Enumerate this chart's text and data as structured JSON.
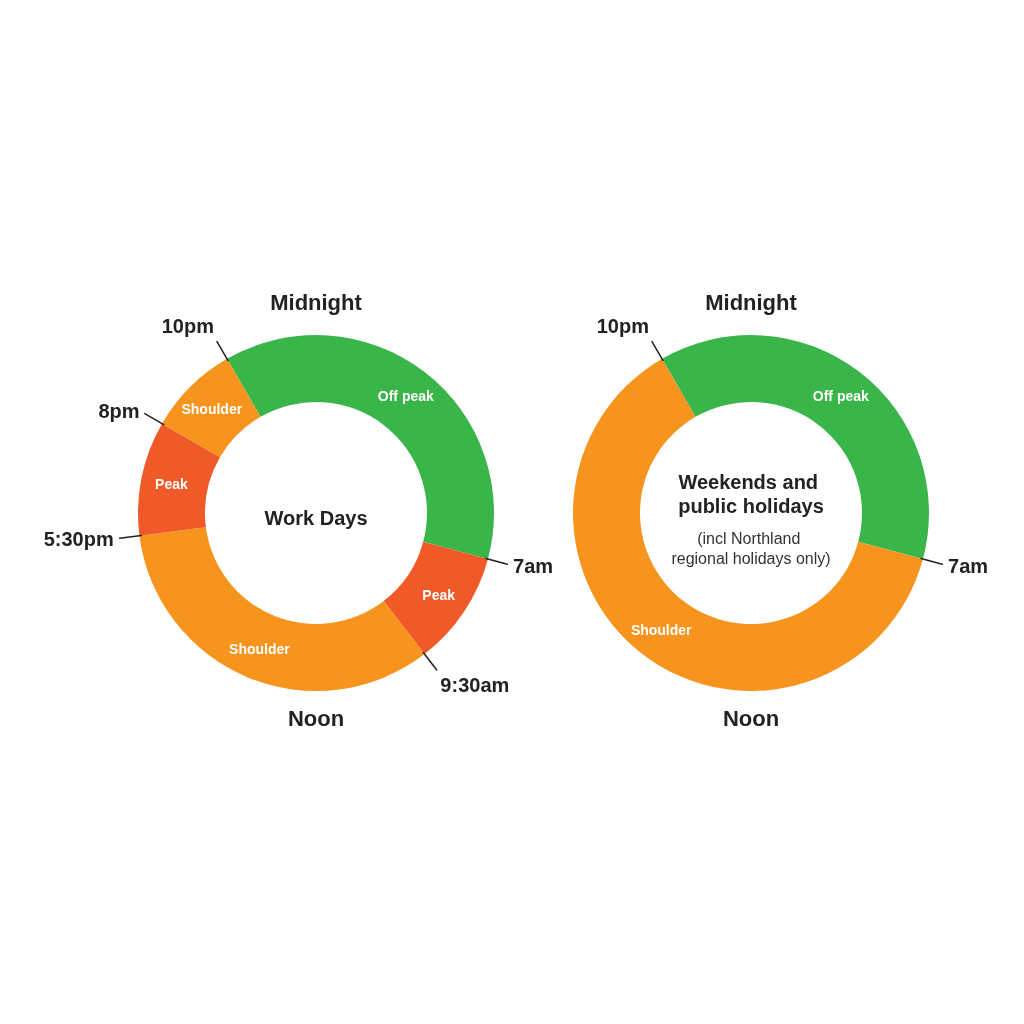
{
  "chart_data": [
    {
      "type": "donut",
      "title": "Work Days",
      "categories": [
        "Off peak",
        "Peak",
        "Shoulder",
        "Peak",
        "Shoulder"
      ],
      "values": [
        37.5,
        10.4,
        33.4,
        10.4,
        8.3
      ],
      "colors": [
        "#39b54a",
        "#f05a28",
        "#f7941e",
        "#f05a28",
        "#f7941e"
      ],
      "annotations": [
        "Midnight",
        "Noon",
        "10pm",
        "7am",
        "9:30am",
        "5:30pm",
        "8pm"
      ]
    },
    {
      "type": "donut",
      "title": "Weekends and public holidays",
      "subtitle": "(incl Northland regional holidays only)",
      "categories": [
        "Off peak",
        "Shoulder"
      ],
      "values": [
        37.5,
        62.5
      ],
      "colors": [
        "#39b54a",
        "#f7941e"
      ],
      "annotations": [
        "Midnight",
        "Noon",
        "10pm",
        "7am"
      ]
    }
  ]
}
